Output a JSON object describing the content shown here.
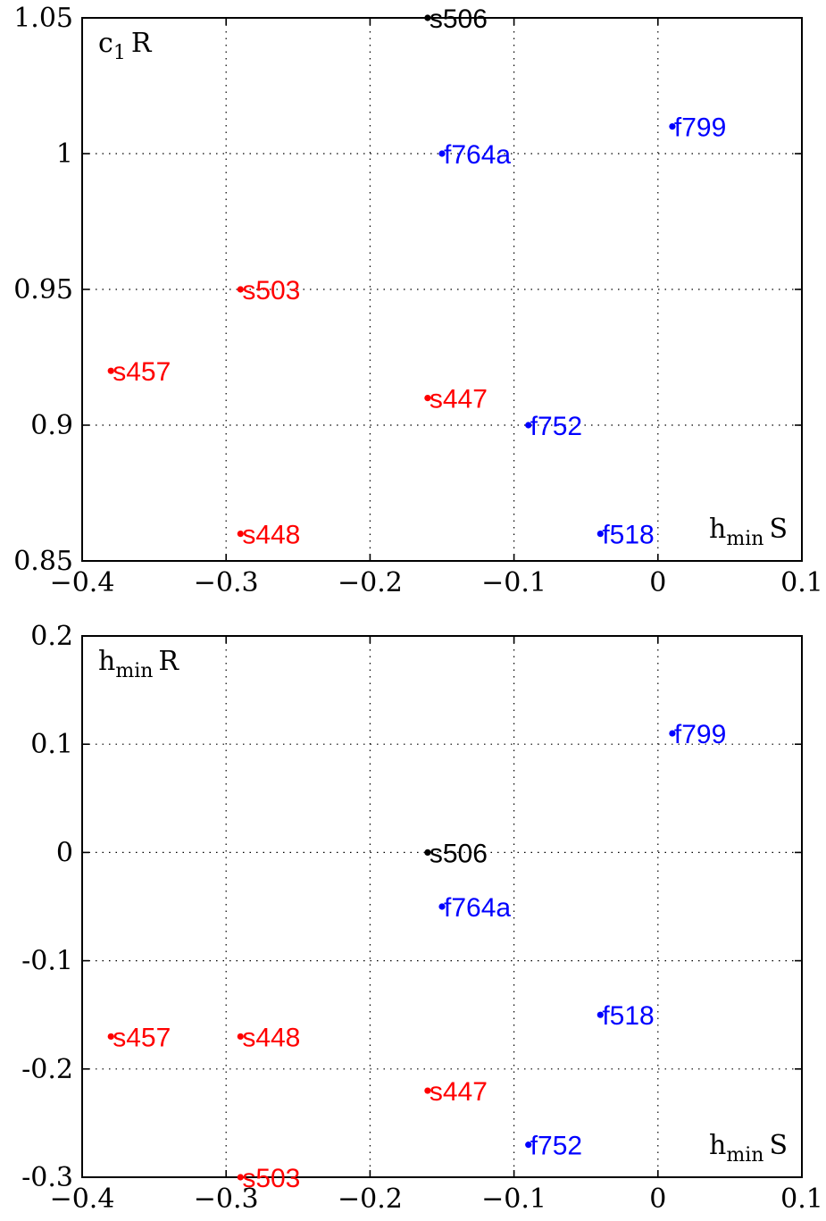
{
  "chart_data": [
    {
      "type": "scatter",
      "xlabel": {
        "main": "h",
        "sub": "min",
        "suffix": "S"
      },
      "ylabel": {
        "main": "c",
        "sub": "1",
        "suffix": "R"
      },
      "xlim": [
        -0.4,
        0.1
      ],
      "ylim": [
        0.85,
        1.05
      ],
      "xticks": [
        -0.4,
        -0.3,
        -0.2,
        -0.1,
        0,
        0.1
      ],
      "xtick_labels": [
        "−0.4",
        "−0.3",
        "−0.2",
        "−0.1",
        "0",
        "0.1"
      ],
      "yticks": [
        0.85,
        0.9,
        0.95,
        1,
        1.05
      ],
      "ytick_labels": [
        "0.85",
        "0.9",
        "0.95",
        "1",
        "1.05"
      ],
      "grid": true,
      "points": [
        {
          "label": "s506",
          "x": -0.16,
          "y": 1.05,
          "color": "#000000"
        },
        {
          "label": "f799",
          "x": 0.01,
          "y": 1.01,
          "color": "#0000ff"
        },
        {
          "label": "f764a",
          "x": -0.15,
          "y": 1.0,
          "color": "#0000ff"
        },
        {
          "label": "s503",
          "x": -0.29,
          "y": 0.95,
          "color": "#ff0000"
        },
        {
          "label": "s457",
          "x": -0.38,
          "y": 0.92,
          "color": "#ff0000"
        },
        {
          "label": "s447",
          "x": -0.16,
          "y": 0.91,
          "color": "#ff0000"
        },
        {
          "label": "f752",
          "x": -0.09,
          "y": 0.9,
          "color": "#0000ff"
        },
        {
          "label": "s448",
          "x": -0.29,
          "y": 0.86,
          "color": "#ff0000"
        },
        {
          "label": "f518",
          "x": -0.04,
          "y": 0.86,
          "color": "#0000ff"
        }
      ]
    },
    {
      "type": "scatter",
      "xlabel": {
        "main": "h",
        "sub": "min",
        "suffix": "S"
      },
      "ylabel": {
        "main": "h",
        "sub": "min",
        "suffix": "R"
      },
      "xlim": [
        -0.4,
        0.1
      ],
      "ylim": [
        -0.3,
        0.2
      ],
      "xticks": [
        -0.4,
        -0.3,
        -0.2,
        -0.1,
        0,
        0.1
      ],
      "xtick_labels": [
        "−0.4",
        "−0.3",
        "−0.2",
        "−0.1",
        "0",
        "0.1"
      ],
      "yticks": [
        -0.3,
        -0.2,
        -0.1,
        0,
        0.1,
        0.2
      ],
      "ytick_labels": [
        "-0.3",
        "-0.2",
        "-0.1",
        "0",
        "0.1",
        "0.2"
      ],
      "grid": true,
      "points": [
        {
          "label": "f799",
          "x": 0.01,
          "y": 0.11,
          "color": "#0000ff"
        },
        {
          "label": "s506",
          "x": -0.16,
          "y": 0.0,
          "color": "#000000"
        },
        {
          "label": "f764a",
          "x": -0.15,
          "y": -0.05,
          "color": "#0000ff"
        },
        {
          "label": "f518",
          "x": -0.04,
          "y": -0.15,
          "color": "#0000ff"
        },
        {
          "label": "s457",
          "x": -0.38,
          "y": -0.17,
          "color": "#ff0000"
        },
        {
          "label": "s448",
          "x": -0.29,
          "y": -0.17,
          "color": "#ff0000"
        },
        {
          "label": "s447",
          "x": -0.16,
          "y": -0.22,
          "color": "#ff0000"
        },
        {
          "label": "f752",
          "x": -0.09,
          "y": -0.27,
          "color": "#0000ff"
        },
        {
          "label": "s503",
          "x": -0.29,
          "y": -0.3,
          "color": "#ff0000"
        }
      ]
    }
  ]
}
